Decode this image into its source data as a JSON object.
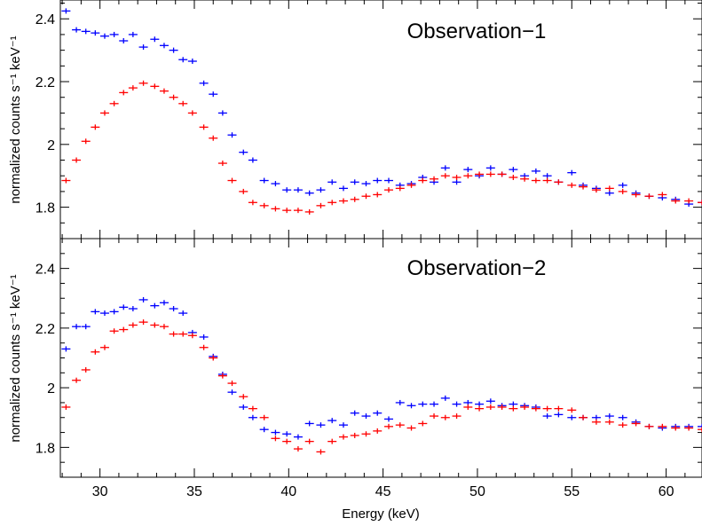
{
  "chart_data": [
    {
      "type": "scatter",
      "title": "Observation−1",
      "ylabel": "normalized counts s⁻¹ keV⁻¹",
      "xlabel": "",
      "xlim": [
        27.9,
        61.9
      ],
      "ylim": [
        1.7,
        2.46
      ],
      "yticks": [
        1.8,
        2,
        2.2,
        2.4
      ],
      "ytick_labels": [
        "1.8",
        "2",
        "2.2",
        "2.4"
      ],
      "series": [
        {
          "color": "#0000ff",
          "x": [
            28.2,
            28.75,
            29.25,
            29.75,
            30.25,
            30.75,
            31.25,
            31.75,
            32.3,
            32.9,
            33.4,
            33.9,
            34.4,
            34.9,
            35.5,
            36.0,
            36.5,
            37.0,
            37.6,
            38.1,
            38.7,
            39.3,
            39.9,
            40.5,
            41.1,
            41.7,
            42.3,
            42.9,
            43.5,
            44.1,
            44.7,
            45.3,
            45.9,
            46.5,
            47.1,
            47.7,
            48.3,
            48.9,
            49.5,
            50.1,
            50.7,
            51.3,
            51.9,
            52.5,
            53.1,
            53.7,
            54.3,
            55.0,
            55.6,
            56.3,
            57.0,
            57.7,
            58.4,
            59.1,
            59.8,
            60.5,
            61.2,
            61.9
          ],
          "y": [
            2.425,
            2.365,
            2.36,
            2.355,
            2.345,
            2.35,
            2.33,
            2.35,
            2.31,
            2.335,
            2.315,
            2.3,
            2.27,
            2.265,
            2.195,
            2.16,
            2.1,
            2.03,
            1.975,
            1.95,
            1.885,
            1.875,
            1.855,
            1.855,
            1.845,
            1.855,
            1.88,
            1.86,
            1.88,
            1.875,
            1.885,
            1.885,
            1.87,
            1.875,
            1.895,
            1.88,
            1.925,
            1.88,
            1.92,
            1.9,
            1.925,
            1.905,
            1.92,
            1.9,
            1.915,
            1.9,
            1.88,
            1.91,
            1.87,
            1.86,
            1.845,
            1.87,
            1.845,
            1.835,
            1.83,
            1.825,
            1.81,
            1.815
          ]
        },
        {
          "color": "#ff0000",
          "x": [
            28.2,
            28.75,
            29.25,
            29.75,
            30.25,
            30.75,
            31.25,
            31.75,
            32.3,
            32.9,
            33.4,
            33.9,
            34.4,
            34.9,
            35.5,
            36.0,
            36.5,
            37.0,
            37.6,
            38.1,
            38.7,
            39.3,
            39.9,
            40.5,
            41.1,
            41.7,
            42.3,
            42.9,
            43.5,
            44.1,
            44.7,
            45.3,
            45.9,
            46.5,
            47.1,
            47.7,
            48.3,
            48.9,
            49.5,
            50.1,
            50.7,
            51.3,
            51.9,
            52.5,
            53.1,
            53.7,
            54.3,
            55.0,
            55.6,
            56.3,
            57.0,
            57.7,
            58.4,
            59.1,
            59.8,
            60.5,
            61.2,
            61.9
          ],
          "y": [
            1.885,
            1.95,
            2.01,
            2.055,
            2.1,
            2.13,
            2.165,
            2.18,
            2.195,
            2.185,
            2.17,
            2.15,
            2.13,
            2.1,
            2.055,
            2.02,
            1.94,
            1.885,
            1.85,
            1.815,
            1.805,
            1.795,
            1.79,
            1.79,
            1.785,
            1.805,
            1.815,
            1.82,
            1.825,
            1.835,
            1.84,
            1.855,
            1.86,
            1.87,
            1.885,
            1.89,
            1.9,
            1.895,
            1.9,
            1.905,
            1.905,
            1.905,
            1.895,
            1.89,
            1.885,
            1.885,
            1.88,
            1.87,
            1.865,
            1.855,
            1.86,
            1.85,
            1.84,
            1.835,
            1.84,
            1.82,
            1.82,
            1.815
          ]
        }
      ]
    },
    {
      "type": "scatter",
      "title": "Observation−2",
      "ylabel": "normalized counts s⁻¹ keV⁻¹",
      "xlabel": "Energy (keV)",
      "xlim": [
        27.9,
        61.9
      ],
      "ylim": [
        1.7,
        2.5
      ],
      "yticks": [
        1.8,
        2,
        2.2,
        2.4
      ],
      "ytick_labels": [
        "1.8",
        "2",
        "2.2",
        "2.4"
      ],
      "xticks": [
        30,
        35,
        40,
        45,
        50,
        55,
        60
      ],
      "xtick_labels": [
        "30",
        "35",
        "40",
        "45",
        "50",
        "55",
        "60"
      ],
      "series": [
        {
          "color": "#0000ff",
          "x": [
            28.2,
            28.75,
            29.25,
            29.75,
            30.25,
            30.75,
            31.25,
            31.75,
            32.3,
            32.9,
            33.4,
            33.9,
            34.4,
            34.9,
            35.5,
            36.0,
            36.5,
            37.0,
            37.6,
            38.1,
            38.7,
            39.3,
            39.9,
            40.5,
            41.1,
            41.7,
            42.3,
            42.9,
            43.5,
            44.1,
            44.7,
            45.3,
            45.9,
            46.5,
            47.1,
            47.7,
            48.3,
            48.9,
            49.5,
            50.1,
            50.7,
            51.3,
            51.9,
            52.5,
            53.1,
            53.7,
            54.3,
            55.0,
            55.6,
            56.3,
            57.0,
            57.7,
            58.4,
            59.1,
            59.8,
            60.5,
            61.2,
            61.9
          ],
          "y": [
            2.13,
            2.205,
            2.205,
            2.255,
            2.25,
            2.255,
            2.27,
            2.265,
            2.295,
            2.275,
            2.285,
            2.265,
            2.25,
            2.185,
            2.17,
            2.105,
            2.045,
            1.985,
            1.935,
            1.9,
            1.86,
            1.85,
            1.845,
            1.835,
            1.88,
            1.875,
            1.89,
            1.875,
            1.915,
            1.905,
            1.915,
            1.895,
            1.95,
            1.94,
            1.945,
            1.945,
            1.965,
            1.945,
            1.95,
            1.945,
            1.955,
            1.94,
            1.945,
            1.94,
            1.935,
            1.905,
            1.91,
            1.9,
            1.9,
            1.9,
            1.905,
            1.9,
            1.885,
            1.87,
            1.865,
            1.87,
            1.87,
            1.87
          ]
        },
        {
          "color": "#ff0000",
          "x": [
            28.2,
            28.75,
            29.25,
            29.75,
            30.25,
            30.75,
            31.25,
            31.75,
            32.3,
            32.9,
            33.4,
            33.9,
            34.4,
            34.9,
            35.5,
            36.0,
            36.5,
            37.0,
            37.6,
            38.1,
            38.7,
            39.3,
            39.9,
            40.5,
            41.1,
            41.7,
            42.3,
            42.9,
            43.5,
            44.1,
            44.7,
            45.3,
            45.9,
            46.5,
            47.1,
            47.7,
            48.3,
            48.9,
            49.5,
            50.1,
            50.7,
            51.3,
            51.9,
            52.5,
            53.1,
            53.7,
            54.3,
            55.0,
            55.6,
            56.3,
            57.0,
            57.7,
            58.4,
            59.1,
            59.8,
            60.5,
            61.2,
            61.9
          ],
          "y": [
            1.935,
            2.025,
            2.06,
            2.12,
            2.135,
            2.19,
            2.195,
            2.21,
            2.22,
            2.21,
            2.205,
            2.18,
            2.18,
            2.175,
            2.135,
            2.1,
            2.04,
            2.015,
            1.97,
            1.93,
            1.9,
            1.83,
            1.82,
            1.795,
            1.82,
            1.785,
            1.82,
            1.835,
            1.84,
            1.845,
            1.855,
            1.87,
            1.875,
            1.865,
            1.88,
            1.905,
            1.9,
            1.905,
            1.935,
            1.93,
            1.935,
            1.935,
            1.93,
            1.935,
            1.93,
            1.93,
            1.93,
            1.925,
            1.9,
            1.885,
            1.885,
            1.875,
            1.88,
            1.87,
            1.87,
            1.865,
            1.865,
            1.86
          ]
        }
      ]
    }
  ]
}
